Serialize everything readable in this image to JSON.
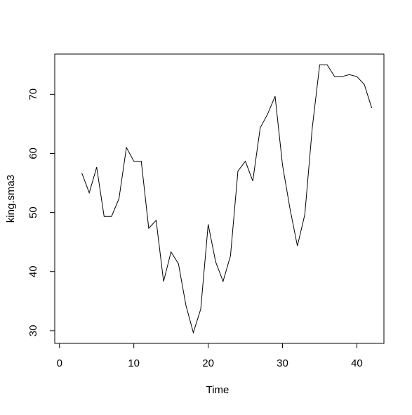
{
  "chart_data": {
    "type": "line",
    "xlabel": "Time",
    "ylabel": "king.sma3",
    "x": [
      1,
      2,
      3,
      4,
      5,
      6,
      7,
      8,
      9,
      10,
      11,
      12,
      13,
      14,
      15,
      16,
      17,
      18,
      19,
      20,
      21,
      22,
      23,
      24,
      25,
      26,
      27,
      28,
      29,
      30,
      31,
      32,
      33,
      34,
      35,
      36,
      37,
      38,
      39,
      40,
      41,
      42
    ],
    "series": [
      {
        "color": "#000000",
        "values": [
          null,
          null,
          56.67,
          53.33,
          57.67,
          49.33,
          49.33,
          52.33,
          61,
          58.67,
          58.67,
          47.33,
          48.67,
          38.33,
          43.33,
          41.33,
          34.33,
          29.67,
          33.67,
          48,
          41.67,
          38.33,
          42.67,
          57,
          58.67,
          55.33,
          64.33,
          66.67,
          69.67,
          58,
          50.67,
          44.33,
          49.67,
          64.33,
          75,
          75,
          73,
          73,
          73.33,
          73,
          71.67,
          67.67
        ]
      }
    ],
    "xlim": [
      -0.64,
      43.64
    ],
    "ylim": [
      27.85,
      76.81
    ],
    "xticks": [
      0,
      10,
      20,
      30,
      40
    ],
    "yticks": [
      30,
      40,
      50,
      60,
      70
    ]
  }
}
